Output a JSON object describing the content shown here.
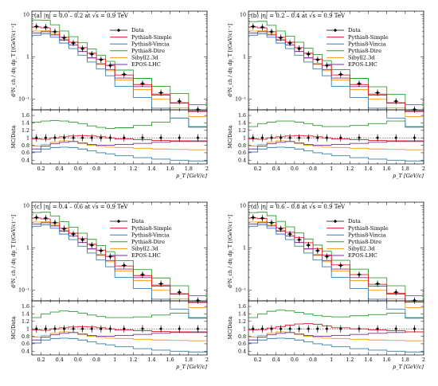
{
  "chart_data": {
    "type": "line",
    "x_axis": {
      "label": "p_T [GeV/c]",
      "range": [
        0.1,
        2.0
      ],
      "ticks": [
        "0.2",
        "0.4",
        "0.6",
        "0.8",
        "1",
        "1.2",
        "1.4",
        "1.6",
        "1.8",
        "2"
      ]
    },
    "top_y_axis": {
      "label": "d²N_ch / dη dp_T [(GeV/c)⁻¹]",
      "scale": "log",
      "range": [
        0.055,
        12
      ],
      "ticks": [
        "10",
        "1",
        "10⁻¹"
      ]
    },
    "ratio_y_axis": {
      "label": "MC/Data",
      "range": [
        0.3,
        1.75
      ],
      "ticks": [
        "0.4",
        "0.6",
        "0.8",
        "1",
        "1.2",
        "1.4",
        "1.6"
      ]
    },
    "bin_edges": [
      0.1,
      0.2,
      0.3,
      0.4,
      0.5,
      0.6,
      0.7,
      0.8,
      0.9,
      1.0,
      1.2,
      1.4,
      1.6,
      1.8,
      2.0
    ],
    "legend": [
      "Data",
      "Pythia8-Simple",
      "Pythia8-Vincia",
      "Pythia8-Dire",
      "Sibyll2.3d",
      "EPOS-LHC"
    ],
    "series_colors": {
      "Data": "#000000",
      "Pythia8-Simple": "#e41a1c",
      "Pythia8-Vincia": "#377eb8",
      "Pythia8-Dire": "#2ca02c",
      "Sibyll2.3d": "#f39c12",
      "EPOS-LHC": "#7b3294"
    },
    "panels": [
      {
        "caption": "(a) |η| = 0.0 – 0.2 at √s = 0.9 TeV",
        "data": {
          "x": [
            0.15,
            0.25,
            0.35,
            0.45,
            0.55,
            0.65,
            0.75,
            0.85,
            0.95,
            1.1,
            1.3,
            1.5,
            1.7,
            1.9
          ],
          "y": [
            5.2,
            5.0,
            3.9,
            2.8,
            2.1,
            1.55,
            1.15,
            0.85,
            0.62,
            0.38,
            0.23,
            0.14,
            0.088,
            0.056
          ]
        },
        "ratios": {
          "Pythia8-Simple": [
            0.97,
            0.96,
            1.0,
            1.03,
            1.05,
            1.06,
            1.05,
            1.03,
            1.0,
            0.97,
            0.95,
            0.93,
            0.92,
            0.9
          ],
          "Pythia8-Vincia": [
            0.62,
            0.7,
            0.74,
            0.75,
            0.74,
            0.7,
            0.65,
            0.6,
            0.57,
            0.52,
            0.47,
            0.43,
            0.4,
            0.38
          ],
          "Pythia8-Dire": [
            1.42,
            1.45,
            1.46,
            1.45,
            1.42,
            1.38,
            1.32,
            1.28,
            1.25,
            1.27,
            1.33,
            1.42,
            1.53,
            1.3
          ],
          "Sibyll2.3d": [
            0.78,
            0.82,
            0.88,
            0.92,
            0.9,
            0.85,
            0.8,
            0.77,
            0.75,
            0.74,
            0.72,
            0.7,
            0.69,
            0.68
          ],
          "EPOS-LHC": [
            0.7,
            0.78,
            0.84,
            0.88,
            0.9,
            0.86,
            0.82,
            0.8,
            0.8,
            0.82,
            0.85,
            0.88,
            0.9,
            0.92
          ]
        }
      },
      {
        "caption": "(b) |η| = 0.2 – 0.4 at √s = 0.9 TeV",
        "data": {
          "x": [
            0.15,
            0.25,
            0.35,
            0.45,
            0.55,
            0.65,
            0.75,
            0.85,
            0.95,
            1.1,
            1.3,
            1.5,
            1.7,
            1.9
          ],
          "y": [
            5.2,
            5.0,
            3.9,
            2.8,
            2.1,
            1.55,
            1.15,
            0.85,
            0.62,
            0.38,
            0.23,
            0.14,
            0.088,
            0.056
          ]
        },
        "ratios": {
          "Pythia8-Simple": [
            0.97,
            0.96,
            1.0,
            1.03,
            1.05,
            1.06,
            1.05,
            1.03,
            1.0,
            0.97,
            0.95,
            0.93,
            0.92,
            0.9
          ],
          "Pythia8-Vincia": [
            0.62,
            0.7,
            0.74,
            0.75,
            0.74,
            0.7,
            0.65,
            0.6,
            0.57,
            0.52,
            0.47,
            0.43,
            0.4,
            0.38
          ],
          "Pythia8-Dire": [
            1.3,
            1.38,
            1.42,
            1.45,
            1.45,
            1.42,
            1.38,
            1.33,
            1.3,
            1.3,
            1.33,
            1.38,
            1.45,
            1.3
          ],
          "Sibyll2.3d": [
            0.78,
            0.82,
            0.88,
            0.92,
            0.9,
            0.85,
            0.8,
            0.77,
            0.75,
            0.74,
            0.72,
            0.7,
            0.69,
            0.68
          ],
          "EPOS-LHC": [
            0.7,
            0.78,
            0.84,
            0.88,
            0.9,
            0.86,
            0.82,
            0.8,
            0.8,
            0.82,
            0.85,
            0.88,
            0.9,
            0.92
          ]
        }
      },
      {
        "caption": "(c) |η| = 0.4 – 0.6 at √s = 0.9 TeV",
        "data": {
          "x": [
            0.15,
            0.25,
            0.35,
            0.45,
            0.55,
            0.65,
            0.75,
            0.85,
            0.95,
            1.1,
            1.3,
            1.5,
            1.7,
            1.9
          ],
          "y": [
            5.2,
            5.0,
            3.9,
            2.8,
            2.1,
            1.55,
            1.15,
            0.85,
            0.62,
            0.38,
            0.23,
            0.14,
            0.088,
            0.056
          ]
        },
        "ratios": {
          "Pythia8-Simple": [
            0.97,
            0.96,
            1.0,
            1.03,
            1.05,
            1.06,
            1.05,
            1.03,
            1.0,
            0.97,
            0.95,
            0.93,
            0.92,
            0.9
          ],
          "Pythia8-Vincia": [
            0.62,
            0.7,
            0.74,
            0.75,
            0.74,
            0.7,
            0.65,
            0.6,
            0.57,
            0.52,
            0.47,
            0.43,
            0.4,
            0.38
          ],
          "Pythia8-Dire": [
            1.3,
            1.4,
            1.45,
            1.48,
            1.46,
            1.42,
            1.37,
            1.33,
            1.3,
            1.3,
            1.32,
            1.37,
            1.42,
            1.3
          ],
          "Sibyll2.3d": [
            0.78,
            0.82,
            0.88,
            0.92,
            0.9,
            0.85,
            0.8,
            0.77,
            0.75,
            0.74,
            0.72,
            0.7,
            0.69,
            0.68
          ],
          "EPOS-LHC": [
            0.7,
            0.78,
            0.84,
            0.88,
            0.9,
            0.86,
            0.82,
            0.8,
            0.8,
            0.82,
            0.85,
            0.88,
            0.9,
            0.92
          ]
        }
      },
      {
        "caption": "(d) |η| = 0.6 – 0.8 at √s = 0.9 TeV",
        "data": {
          "x": [
            0.15,
            0.25,
            0.35,
            0.45,
            0.55,
            0.65,
            0.75,
            0.85,
            0.95,
            1.1,
            1.3,
            1.5,
            1.7,
            1.9
          ],
          "y": [
            5.2,
            5.0,
            3.9,
            2.8,
            2.1,
            1.55,
            1.15,
            0.85,
            0.62,
            0.38,
            0.23,
            0.14,
            0.088,
            0.056
          ]
        },
        "ratios": {
          "Pythia8-Simple": [
            0.97,
            0.98,
            1.02,
            1.06,
            1.1,
            1.13,
            1.14,
            1.12,
            1.08,
            1.03,
            1.0,
            0.97,
            0.95,
            0.92
          ],
          "Pythia8-Vincia": [
            0.62,
            0.7,
            0.74,
            0.75,
            0.74,
            0.7,
            0.65,
            0.6,
            0.57,
            0.52,
            0.47,
            0.43,
            0.4,
            0.38
          ],
          "Pythia8-Dire": [
            1.3,
            1.4,
            1.47,
            1.5,
            1.48,
            1.44,
            1.4,
            1.36,
            1.33,
            1.32,
            1.35,
            1.38,
            1.42,
            1.3
          ],
          "Sibyll2.3d": [
            0.78,
            0.82,
            0.88,
            0.92,
            0.9,
            0.85,
            0.8,
            0.77,
            0.75,
            0.74,
            0.72,
            0.7,
            0.69,
            0.68
          ],
          "EPOS-LHC": [
            0.7,
            0.78,
            0.84,
            0.88,
            0.9,
            0.86,
            0.82,
            0.8,
            0.8,
            0.82,
            0.85,
            0.88,
            0.9,
            0.92
          ]
        }
      }
    ]
  }
}
